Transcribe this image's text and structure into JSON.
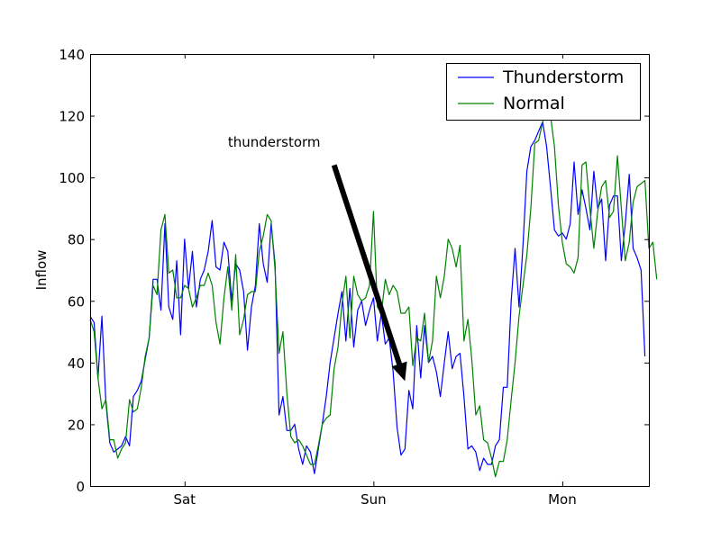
{
  "chart_data": {
    "type": "line",
    "title": "",
    "xlabel": "",
    "ylabel": "Inflow",
    "ylim": [
      0,
      140
    ],
    "xlim": [
      0,
      142
    ],
    "x_ticks": [
      {
        "x": 24,
        "label": "Sat"
      },
      {
        "x": 72,
        "label": "Sun"
      },
      {
        "x": 120,
        "label": "Mon"
      }
    ],
    "y_ticks": [
      0,
      20,
      40,
      60,
      80,
      100,
      120,
      140
    ],
    "grid": false,
    "legend_position": "top-right",
    "series": [
      {
        "name": "Thunderstorm",
        "color": "#0000ff",
        "values": [
          55,
          53,
          35,
          55,
          27,
          14,
          11,
          12,
          13,
          16,
          13,
          29,
          31,
          34,
          41,
          48,
          67,
          67,
          57,
          85,
          58,
          54,
          73,
          49,
          80,
          64,
          76,
          58,
          67,
          70,
          76,
          86,
          71,
          70,
          79,
          76,
          60,
          72,
          70,
          63,
          44,
          58,
          65,
          85,
          72,
          66,
          85,
          72,
          23,
          29,
          18,
          18,
          20,
          12,
          7,
          13,
          11,
          4,
          12,
          20,
          29,
          40,
          48,
          56,
          63,
          47,
          64,
          45,
          57,
          60,
          52,
          57,
          61,
          47,
          56,
          46,
          48,
          37,
          19,
          10,
          12,
          31,
          25,
          52,
          35,
          52,
          40,
          42,
          37,
          29,
          40,
          50,
          38,
          42,
          43,
          29,
          12,
          13,
          11,
          5,
          9,
          7,
          7,
          13,
          15,
          32,
          32,
          60,
          77,
          58,
          78,
          102,
          110,
          112,
          115,
          118,
          110,
          97,
          83,
          81,
          82,
          80,
          85,
          105,
          88,
          96,
          90,
          83,
          102,
          90,
          93,
          73,
          91,
          94,
          94,
          73,
          85,
          101,
          77,
          74,
          70,
          42
        ]
      },
      {
        "name": "Normal",
        "color": "#008000",
        "values": [
          54,
          50,
          35,
          25,
          28,
          15,
          15,
          9,
          12,
          14,
          28,
          24,
          25,
          32,
          42,
          48,
          65,
          62,
          83,
          88,
          69,
          70,
          61,
          61,
          65,
          64,
          58,
          61,
          65,
          65,
          69,
          65,
          53,
          46,
          61,
          71,
          57,
          75,
          49,
          54,
          62,
          63,
          63,
          76,
          81,
          88,
          86,
          70,
          43,
          50,
          30,
          16,
          14,
          15,
          13,
          10,
          7,
          7,
          13,
          20,
          22,
          23,
          38,
          45,
          59,
          68,
          48,
          68,
          62,
          60,
          61,
          65,
          89,
          58,
          56,
          67,
          62,
          65,
          63,
          56,
          56,
          58,
          39,
          48,
          47,
          56,
          40,
          47,
          68,
          61,
          68,
          80,
          77,
          71,
          78,
          47,
          54,
          41,
          23,
          26,
          15,
          14,
          9,
          3,
          8,
          8,
          15,
          28,
          40,
          55,
          65,
          75,
          90,
          111,
          112,
          118,
          121,
          120,
          110,
          91,
          79,
          72,
          71,
          69,
          74,
          104,
          105,
          90,
          77,
          89,
          97,
          99,
          87,
          89,
          107,
          90,
          73,
          79,
          92,
          97,
          98,
          99,
          77,
          79,
          67
        ]
      }
    ],
    "annotation": {
      "text": "thunderstorm",
      "xytext": [
        35,
        110
      ],
      "arrow_tail": [
        62,
        104
      ],
      "arrow_head": [
        80,
        34
      ]
    }
  }
}
